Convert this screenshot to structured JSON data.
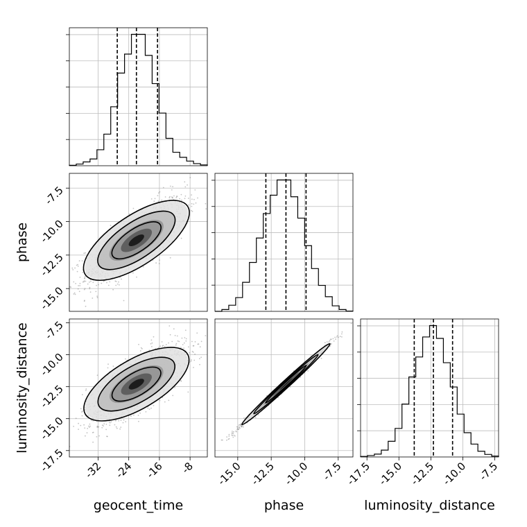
{
  "chart_data": {
    "type": "corner",
    "parameters": [
      "geocent_time",
      "phase",
      "luminosity_distance"
    ],
    "axis_labels": {
      "x": [
        "geocent_time",
        "phase",
        "luminosity_distance"
      ],
      "y": [
        "phase",
        "luminosity_distance"
      ]
    },
    "ranges": {
      "geocent_time": [
        -39.5,
        -3.5
      ],
      "phase": [
        -16.7,
        -6.4
      ],
      "luminosity_distance": [
        -18.0,
        -7.2
      ]
    },
    "ticks": {
      "geocent_time": [
        "-32",
        "-24",
        "-16",
        "-8"
      ],
      "phase": [
        "-15.0",
        "-12.5",
        "-10.0",
        "-7.5"
      ],
      "luminosity_distance": [
        "-17.5",
        "-15.0",
        "-12.5",
        "-10.0",
        "-7.5"
      ]
    },
    "grid": true,
    "quantiles_dashed": {
      "geocent_time": [
        -27.0,
        -22.0,
        -16.5
      ],
      "phase": [
        -12.9,
        -11.4,
        -9.9
      ],
      "luminosity_distance": [
        -13.8,
        -12.3,
        -10.8
      ]
    },
    "marginals": [
      {
        "parameter": "geocent_time",
        "bin_edges": [
          -39.5,
          -37.7,
          -35.9,
          -34.1,
          -32.3,
          -30.5,
          -28.7,
          -26.9,
          -25.1,
          -23.3,
          -21.5,
          -19.7,
          -17.9,
          -16.1,
          -14.3,
          -12.5,
          -10.7,
          -8.9,
          -7.1,
          -5.3,
          -3.5
        ],
        "counts": [
          1,
          4,
          9,
          16,
          38,
          75,
          140,
          220,
          265,
          312,
          312,
          262,
          195,
          125,
          65,
          32,
          20,
          11,
          5,
          2
        ]
      },
      {
        "parameter": "phase",
        "bin_edges": [
          -16.7,
          -16.185,
          -15.67,
          -15.155,
          -14.64,
          -14.125,
          -13.61,
          -13.095,
          -12.58,
          -12.065,
          -11.55,
          -11.035,
          -10.52,
          -10.005,
          -9.49,
          -8.975,
          -8.46,
          -7.945,
          -7.43,
          -6.915,
          -6.4
        ],
        "counts": [
          0,
          6,
          20,
          45,
          95,
          160,
          240,
          320,
          380,
          430,
          430,
          375,
          305,
          215,
          140,
          85,
          48,
          18,
          6,
          1
        ]
      },
      {
        "parameter": "luminosity_distance",
        "bin_edges": [
          -18.0,
          -17.46,
          -16.92,
          -16.38,
          -15.84,
          -15.3,
          -14.76,
          -14.22,
          -13.68,
          -13.14,
          -12.6,
          -12.06,
          -11.52,
          -10.98,
          -10.44,
          -9.9,
          -9.36,
          -8.82,
          -8.28,
          -7.74,
          -7.2
        ],
        "counts": [
          2,
          5,
          10,
          24,
          55,
          100,
          185,
          280,
          350,
          420,
          460,
          415,
          330,
          245,
          150,
          85,
          45,
          20,
          9,
          3
        ]
      }
    ],
    "pairs": [
      {
        "x": "geocent_time",
        "y": "phase",
        "mean": [
          -22.0,
          -11.4
        ],
        "sd": [
          6.5,
          1.6
        ],
        "rho": 0.78
      },
      {
        "x": "geocent_time",
        "y": "luminosity_distance",
        "mean": [
          -22.0,
          -12.3
        ],
        "sd": [
          6.5,
          1.55
        ],
        "rho": 0.74
      },
      {
        "x": "phase",
        "y": "luminosity_distance",
        "mean": [
          -11.4,
          -12.3
        ],
        "sd": [
          1.6,
          1.55
        ],
        "rho": 0.995
      }
    ]
  }
}
